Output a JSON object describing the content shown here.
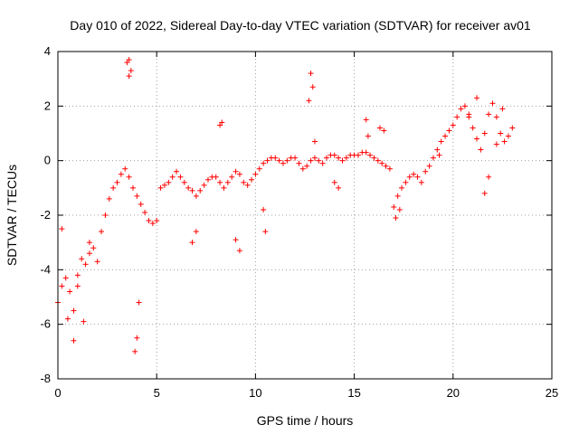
{
  "chart_data": {
    "type": "scatter",
    "title": "Day 010 of 2022, Sidereal Day-to-day VTEC variation (SDTVAR) for receiver av01",
    "xlabel": "GPS time / hours",
    "ylabel": "SDTVAR / TECUs",
    "xlim": [
      0,
      25
    ],
    "ylim": [
      -8,
      4
    ],
    "xticks": [
      0,
      5,
      10,
      15,
      20,
      25
    ],
    "xtick_labels": [
      "0",
      "5",
      "10",
      "15",
      "20",
      "25"
    ],
    "yticks": [
      -8,
      -6,
      -4,
      -2,
      0,
      2,
      4
    ],
    "ytick_labels": [
      "-8",
      "-6",
      "-4",
      "-2",
      "0",
      "2",
      "4"
    ],
    "grid": true,
    "grid_style": "dotted",
    "legend": "none",
    "marker": "+",
    "series": [
      {
        "name": "SDTVAR",
        "color": "#ff0000",
        "x": [
          0.0,
          0.2,
          0.4,
          0.6,
          0.8,
          1.0,
          1.2,
          1.4,
          1.6,
          1.8,
          2.0,
          2.2,
          2.4,
          2.6,
          2.8,
          3.0,
          3.2,
          3.4,
          3.6,
          3.8,
          4.0,
          4.2,
          4.4,
          4.6,
          4.8,
          5.0,
          5.2,
          5.4,
          5.6,
          5.8,
          6.0,
          6.2,
          6.4,
          6.6,
          6.8,
          7.0,
          7.2,
          7.4,
          7.6,
          7.8,
          8.0,
          8.2,
          8.4,
          8.6,
          8.8,
          9.0,
          9.2,
          9.4,
          9.6,
          9.8,
          10.0,
          10.2,
          10.4,
          10.6,
          10.8,
          11.0,
          11.2,
          11.4,
          11.6,
          11.8,
          12.0,
          12.2,
          12.4,
          12.6,
          12.8,
          13.0,
          13.2,
          13.4,
          13.6,
          13.8,
          14.0,
          14.2,
          14.4,
          14.6,
          14.8,
          15.0,
          15.2,
          15.4,
          15.6,
          15.8,
          16.0,
          16.2,
          16.4,
          16.6,
          16.8,
          17.0,
          17.2,
          17.4,
          17.6,
          17.8,
          18.0,
          18.2,
          18.4,
          18.6,
          18.8,
          19.0,
          19.2,
          19.4,
          19.6,
          19.8,
          20.0,
          20.2,
          20.4,
          20.6,
          20.8,
          21.0,
          21.2,
          21.4,
          21.6,
          21.8,
          22.0,
          22.2,
          22.4,
          22.6,
          22.8,
          23.0,
          0.2,
          0.5,
          0.8,
          1.0,
          1.3,
          1.6,
          3.6,
          3.7,
          3.5,
          3.6,
          8.2,
          8.3,
          12.8,
          12.9,
          12.7,
          13.0,
          15.6,
          15.7,
          16.3,
          16.5,
          19.3,
          4.0,
          4.1,
          3.9,
          6.8,
          7.0,
          9.0,
          9.2,
          10.4,
          10.5,
          14.0,
          14.2,
          17.1,
          17.3,
          21.6,
          21.8,
          22.2,
          22.5,
          20.8,
          21.2
        ],
        "y": [
          -5.2,
          -4.6,
          -4.3,
          -4.8,
          -5.5,
          -4.2,
          -3.6,
          -3.8,
          -3.4,
          -3.2,
          -3.7,
          -2.6,
          -2.0,
          -1.4,
          -1.0,
          -0.8,
          -0.5,
          -0.3,
          -0.6,
          -1.0,
          -1.3,
          -1.6,
          -1.9,
          -2.2,
          -2.3,
          -2.2,
          -1.0,
          -0.9,
          -0.8,
          -0.6,
          -0.4,
          -0.6,
          -0.8,
          -1.0,
          -1.1,
          -1.3,
          -1.1,
          -0.9,
          -0.7,
          -0.6,
          -0.6,
          -0.8,
          -1.0,
          -0.8,
          -0.6,
          -0.4,
          -0.5,
          -0.8,
          -0.9,
          -0.7,
          -0.5,
          -0.3,
          -0.1,
          0.0,
          0.1,
          0.1,
          0.0,
          -0.1,
          0.0,
          0.1,
          0.1,
          -0.1,
          -0.3,
          -0.2,
          0.0,
          0.1,
          0.0,
          -0.1,
          0.1,
          0.2,
          0.2,
          0.1,
          0.0,
          0.1,
          0.2,
          0.2,
          0.2,
          0.3,
          0.3,
          0.2,
          0.1,
          0.0,
          -0.1,
          -0.2,
          -0.3,
          -1.7,
          -1.3,
          -1.0,
          -0.8,
          -0.6,
          -0.5,
          -0.6,
          -0.8,
          -0.4,
          -0.2,
          0.1,
          0.4,
          0.7,
          0.9,
          1.1,
          1.3,
          1.6,
          1.9,
          2.0,
          1.6,
          1.2,
          0.8,
          0.4,
          1.0,
          1.7,
          2.1,
          1.6,
          1.0,
          0.7,
          0.9,
          1.2,
          -2.5,
          -5.8,
          -6.6,
          -4.6,
          -5.9,
          -3.0,
          3.7,
          3.3,
          3.6,
          3.1,
          1.3,
          1.4,
          3.2,
          2.7,
          2.2,
          0.7,
          1.5,
          0.9,
          1.2,
          1.1,
          0.2,
          -6.5,
          -5.2,
          -7.0,
          -3.0,
          -2.6,
          -2.9,
          -3.3,
          -1.8,
          -2.6,
          -0.8,
          -1.0,
          -2.1,
          -1.8,
          -1.2,
          -0.6,
          0.6,
          1.9,
          1.7,
          2.3
        ]
      }
    ]
  }
}
